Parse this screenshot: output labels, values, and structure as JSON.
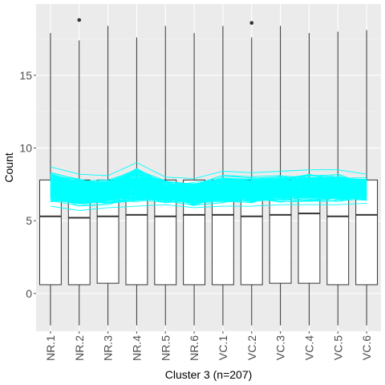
{
  "chart_data": {
    "type": "box",
    "xlabel": "Cluster 3 (n=207)",
    "ylabel": "Count",
    "ylim": [
      -2.6,
      19.9
    ],
    "yticks": [
      0,
      5,
      10,
      15
    ],
    "categories": [
      "NR.1",
      "NR.2",
      "NR.3",
      "NR.4",
      "NR.5",
      "NR.6",
      "VC.1",
      "VC.2",
      "VC.3",
      "VC.4",
      "VC.5",
      "VC.6"
    ],
    "boxes": [
      {
        "category": "NR.1",
        "min": -2.2,
        "q1": 0.6,
        "median": 5.3,
        "q3": 7.8,
        "max": 17.9,
        "outliers": []
      },
      {
        "category": "NR.2",
        "min": -2.2,
        "q1": 0.6,
        "median": 5.2,
        "q3": 7.8,
        "max": 17.4,
        "outliers": [
          18.8
        ]
      },
      {
        "category": "NR.3",
        "min": -2.2,
        "q1": 0.7,
        "median": 5.3,
        "q3": 7.8,
        "max": 18.4,
        "outliers": []
      },
      {
        "category": "NR.4",
        "min": -2.2,
        "q1": 0.6,
        "median": 5.4,
        "q3": 7.8,
        "max": 17.6,
        "outliers": []
      },
      {
        "category": "NR.5",
        "min": -2.2,
        "q1": 0.6,
        "median": 5.3,
        "q3": 7.8,
        "max": 18.4,
        "outliers": []
      },
      {
        "category": "NR.6",
        "min": -2.2,
        "q1": 0.6,
        "median": 5.4,
        "q3": 7.8,
        "max": 17.9,
        "outliers": []
      },
      {
        "category": "VC.1",
        "min": -2.2,
        "q1": 0.6,
        "median": 5.4,
        "q3": 7.8,
        "max": 18.4,
        "outliers": []
      },
      {
        "category": "VC.2",
        "min": -2.2,
        "q1": 0.6,
        "median": 5.3,
        "q3": 7.8,
        "max": 17.6,
        "outliers": [
          18.6
        ]
      },
      {
        "category": "VC.3",
        "min": -2.2,
        "q1": 0.7,
        "median": 5.4,
        "q3": 7.8,
        "max": 18.4,
        "outliers": []
      },
      {
        "category": "VC.4",
        "min": -2.2,
        "q1": 0.7,
        "median": 5.5,
        "q3": 7.8,
        "max": 17.9,
        "outliers": []
      },
      {
        "category": "VC.5",
        "min": -2.2,
        "q1": 0.6,
        "median": 5.3,
        "q3": 7.8,
        "max": 18.0,
        "outliers": []
      },
      {
        "category": "VC.6",
        "min": -2.2,
        "q1": 0.6,
        "median": 5.4,
        "q3": 7.8,
        "max": 18.1,
        "outliers": []
      }
    ],
    "profile_overlay": {
      "type": "line",
      "n_lines": 207,
      "mean": [
        7.0,
        7.0,
        7.0,
        7.0,
        7.0,
        6.9,
        7.0,
        7.1,
        7.1,
        7.2,
        7.2,
        7.2
      ],
      "lower": [
        6.0,
        5.7,
        5.9,
        6.0,
        6.1,
        5.9,
        6.0,
        6.0,
        6.1,
        6.1,
        6.1,
        6.2
      ],
      "upper": [
        8.7,
        8.2,
        8.1,
        9.0,
        8.0,
        7.9,
        8.4,
        8.3,
        8.4,
        8.5,
        8.5,
        8.2
      ],
      "color": "#00FFFF"
    },
    "colors": {
      "panel": "#EBEBEB",
      "grid_major": "#FFFFFF",
      "grid_minor": "#F5F5F5",
      "box_fill": "#FFFFFF",
      "box_line": "#333333",
      "tick": "#4D4D4D"
    },
    "grid": true,
    "legend": "none"
  }
}
